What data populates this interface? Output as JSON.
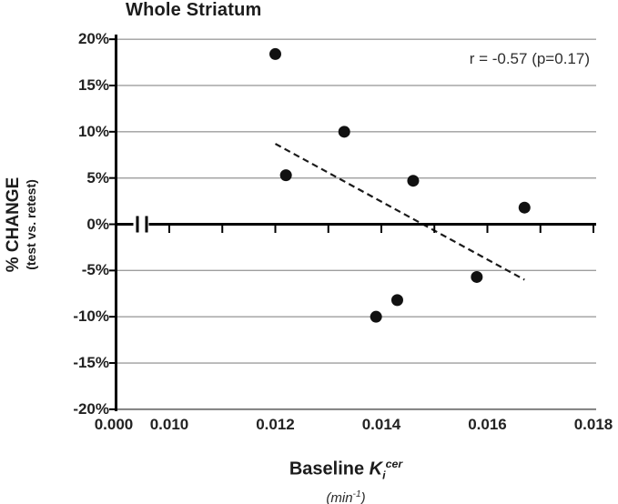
{
  "title": "Whole Striatum",
  "annotation": "r = -0.57 (p=0.17)",
  "y_axis": {
    "label_line1": "% CHANGE",
    "label_line2": "(test vs. retest)"
  },
  "x_axis": {
    "title_prefix": "Baseline ",
    "title_k": "K",
    "title_subscript": "i",
    "title_superscript": "cer",
    "units_open": "(min",
    "units_exponent": "-1",
    "units_close": ")"
  },
  "colors": {
    "background": "#ffffff",
    "gridline": "#9e9e9e",
    "bottom_border": "#7f7f7f",
    "axis": "#000000",
    "point": "#111111",
    "trendline": "#1a1a1a",
    "text": "#222222"
  },
  "chart_data": {
    "type": "scatter",
    "title": "Whole Striatum",
    "xlabel": "Baseline Ki^cer (min^-1)",
    "ylabel": "% CHANGE (test vs. retest)",
    "annotation": "r = -0.57 (p=0.17)",
    "r_value": -0.57,
    "p_value": 0.17,
    "grid": true,
    "legend": false,
    "ylim": [
      -20,
      20
    ],
    "y_unit": "%",
    "xlim_data": [
      0.01,
      0.018
    ],
    "x_axis_break_between": [
      0,
      0.01
    ],
    "y_ticks": {
      "values": [
        20,
        15,
        10,
        5,
        0,
        -5,
        -10,
        -15,
        -20
      ],
      "labels": [
        "20%",
        "15%",
        "10%",
        "5%",
        "0%",
        "-5%",
        "-10%",
        "-15%",
        "-20%"
      ]
    },
    "x_ticks": {
      "values": [
        0,
        0.01,
        0.012,
        0.014,
        0.016,
        0.018
      ],
      "labels": [
        "0.000",
        "0.010",
        "0.012",
        "0.014",
        "0.016",
        "0.018"
      ]
    },
    "x_minor_ticks": [
      0.01,
      0.011,
      0.012,
      0.013,
      0.014,
      0.015,
      0.016,
      0.017,
      0.018
    ],
    "points": [
      {
        "x": 0.012,
        "y": 18.4
      },
      {
        "x": 0.0122,
        "y": 5.3
      },
      {
        "x": 0.0133,
        "y": 10.0
      },
      {
        "x": 0.0146,
        "y": 4.7
      },
      {
        "x": 0.0167,
        "y": 1.8
      },
      {
        "x": 0.0158,
        "y": -5.7
      },
      {
        "x": 0.0143,
        "y": -8.2
      },
      {
        "x": 0.0139,
        "y": -10.0
      }
    ],
    "trendline": {
      "x1": 0.012,
      "y1": 8.7,
      "x2": 0.0167,
      "y2": -6.0,
      "style": "dashed"
    }
  }
}
